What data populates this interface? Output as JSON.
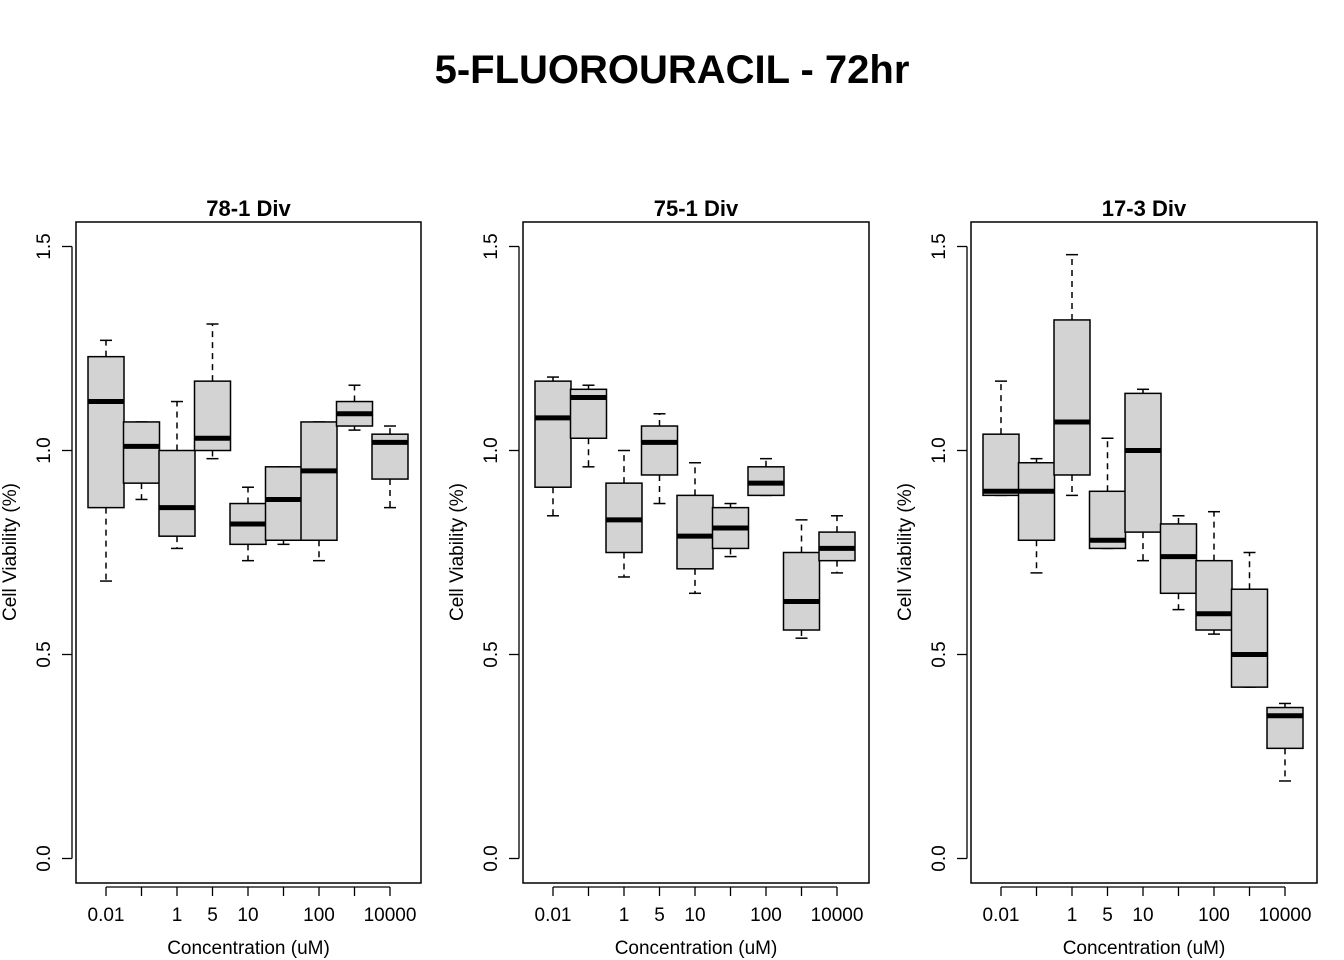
{
  "title": "5-FLUOROURACIL - 72hr",
  "chart_data": [
    {
      "type": "box",
      "title": "78-1 Div",
      "xlabel": "Concentration (uM)",
      "ylabel": "Cell Viability (%)",
      "ylim": [
        0,
        1.5
      ],
      "yticks": [
        "0.0",
        "0.5",
        "1.0",
        "1.5"
      ],
      "categories": [
        "0.01",
        "",
        "1",
        "5",
        "10",
        "",
        "100",
        "",
        "10000"
      ],
      "boxes": [
        {
          "whisker_low": 0.68,
          "q1": 0.86,
          "median": 1.12,
          "q3": 1.23,
          "whisker_high": 1.27
        },
        {
          "whisker_low": 0.88,
          "q1": 0.92,
          "median": 1.01,
          "q3": 1.07,
          "whisker_high": 1.07
        },
        {
          "whisker_low": 0.76,
          "q1": 0.79,
          "median": 0.86,
          "q3": 1.0,
          "whisker_high": 1.12
        },
        {
          "whisker_low": 0.98,
          "q1": 1.0,
          "median": 1.03,
          "q3": 1.17,
          "whisker_high": 1.31
        },
        {
          "whisker_low": 0.73,
          "q1": 0.77,
          "median": 0.82,
          "q3": 0.87,
          "whisker_high": 0.91
        },
        {
          "whisker_low": 0.77,
          "q1": 0.78,
          "median": 0.88,
          "q3": 0.96,
          "whisker_high": 0.96
        },
        {
          "whisker_low": 0.73,
          "q1": 0.78,
          "median": 0.95,
          "q3": 1.07,
          "whisker_high": 1.07
        },
        {
          "whisker_low": 1.05,
          "q1": 1.06,
          "median": 1.09,
          "q3": 1.12,
          "whisker_high": 1.16
        },
        {
          "whisker_low": 0.86,
          "q1": 0.93,
          "median": 1.02,
          "q3": 1.04,
          "whisker_high": 1.06
        }
      ]
    },
    {
      "type": "box",
      "title": "75-1 Div",
      "xlabel": "Concentration (uM)",
      "ylabel": "Cell Viability (%)",
      "ylim": [
        0,
        1.5
      ],
      "yticks": [
        "0.0",
        "0.5",
        "1.0",
        "1.5"
      ],
      "categories": [
        "0.01",
        "",
        "1",
        "5",
        "10",
        "",
        "100",
        "",
        "10000"
      ],
      "boxes": [
        {
          "whisker_low": 0.84,
          "q1": 0.91,
          "median": 1.08,
          "q3": 1.17,
          "whisker_high": 1.18
        },
        {
          "whisker_low": 0.96,
          "q1": 1.03,
          "median": 1.13,
          "q3": 1.15,
          "whisker_high": 1.16
        },
        {
          "whisker_low": 0.69,
          "q1": 0.75,
          "median": 0.83,
          "q3": 0.92,
          "whisker_high": 1.0
        },
        {
          "whisker_low": 0.87,
          "q1": 0.94,
          "median": 1.02,
          "q3": 1.06,
          "whisker_high": 1.09
        },
        {
          "whisker_low": 0.65,
          "q1": 0.71,
          "median": 0.79,
          "q3": 0.89,
          "whisker_high": 0.97
        },
        {
          "whisker_low": 0.74,
          "q1": 0.76,
          "median": 0.81,
          "q3": 0.86,
          "whisker_high": 0.87
        },
        {
          "whisker_low": 0.89,
          "q1": 0.89,
          "median": 0.92,
          "q3": 0.96,
          "whisker_high": 0.98
        },
        {
          "whisker_low": 0.54,
          "q1": 0.56,
          "median": 0.63,
          "q3": 0.75,
          "whisker_high": 0.83
        },
        {
          "whisker_low": 0.7,
          "q1": 0.73,
          "median": 0.76,
          "q3": 0.8,
          "whisker_high": 0.84
        }
      ]
    },
    {
      "type": "box",
      "title": "17-3 Div",
      "xlabel": "Concentration (uM)",
      "ylabel": "Cell Viability (%)",
      "ylim": [
        0,
        1.5
      ],
      "yticks": [
        "0.0",
        "0.5",
        "1.0",
        "1.5"
      ],
      "categories": [
        "0.01",
        "",
        "1",
        "5",
        "10",
        "",
        "100",
        "",
        "10000"
      ],
      "boxes": [
        {
          "whisker_low": 0.89,
          "q1": 0.89,
          "median": 0.9,
          "q3": 1.04,
          "whisker_high": 1.17
        },
        {
          "whisker_low": 0.7,
          "q1": 0.78,
          "median": 0.9,
          "q3": 0.97,
          "whisker_high": 0.98
        },
        {
          "whisker_low": 0.89,
          "q1": 0.94,
          "median": 1.07,
          "q3": 1.32,
          "whisker_high": 1.48
        },
        {
          "whisker_low": 0.76,
          "q1": 0.76,
          "median": 0.78,
          "q3": 0.9,
          "whisker_high": 1.03
        },
        {
          "whisker_low": 0.73,
          "q1": 0.8,
          "median": 1.0,
          "q3": 1.14,
          "whisker_high": 1.15
        },
        {
          "whisker_low": 0.61,
          "q1": 0.65,
          "median": 0.74,
          "q3": 0.82,
          "whisker_high": 0.84
        },
        {
          "whisker_low": 0.55,
          "q1": 0.56,
          "median": 0.6,
          "q3": 0.73,
          "whisker_high": 0.85
        },
        {
          "whisker_low": 0.42,
          "q1": 0.42,
          "median": 0.5,
          "q3": 0.66,
          "whisker_high": 0.75
        },
        {
          "whisker_low": 0.19,
          "q1": 0.27,
          "median": 0.35,
          "q3": 0.37,
          "whisker_high": 0.38
        }
      ]
    }
  ]
}
